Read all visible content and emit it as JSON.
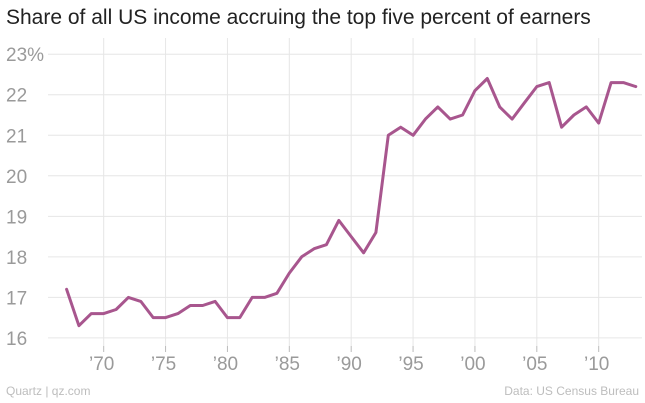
{
  "chart_data": {
    "type": "line",
    "title": "Share of all US income accruing the top five percent of earners",
    "xlabel": "",
    "ylabel": "",
    "xlim": [
      1965.5,
      2013.5
    ],
    "ylim": [
      15.8,
      23.4
    ],
    "x_ticks": [
      1970,
      1975,
      1980,
      1985,
      1990,
      1995,
      2000,
      2005,
      2010
    ],
    "x_tick_labels": [
      "’70",
      "’75",
      "’80",
      "’85",
      "’90",
      "’95",
      "’00",
      "’05",
      "’10"
    ],
    "y_ticks": [
      16,
      17,
      18,
      19,
      20,
      21,
      22,
      23
    ],
    "y_tick_labels": [
      "16",
      "17",
      "18",
      "19",
      "20",
      "21",
      "22",
      "23%"
    ],
    "grid": true,
    "line_color": "#a8568e",
    "series": [
      {
        "x": [
          1967,
          1968,
          1969,
          1970,
          1971,
          1972,
          1973,
          1974,
          1975,
          1976,
          1977,
          1978,
          1979,
          1980,
          1981,
          1982,
          1983,
          1984,
          1985,
          1986,
          1987,
          1988,
          1989,
          1990,
          1991,
          1992,
          1993,
          1994,
          1995,
          1996,
          1997,
          1998,
          1999,
          2000,
          2001,
          2002,
          2003,
          2004,
          2005,
          2006,
          2007,
          2008,
          2009,
          2010,
          2011,
          2012
        ],
        "y": [
          17.2,
          16.3,
          16.6,
          16.6,
          16.7,
          17.0,
          16.9,
          16.5,
          16.5,
          16.6,
          16.8,
          16.8,
          16.9,
          16.5,
          16.5,
          17.0,
          17.0,
          17.1,
          17.6,
          18.0,
          18.2,
          18.3,
          18.9,
          18.5,
          18.1,
          18.6,
          21.0,
          21.2,
          21.0,
          21.4,
          21.7,
          21.4,
          21.5,
          22.1,
          22.4,
          21.7,
          21.4,
          21.8,
          22.2,
          22.3,
          21.2,
          21.5,
          21.7,
          21.3,
          22.3,
          22.3
        ]
      }
    ],
    "final_point": {
      "x": 2013,
      "y": 22.2
    }
  },
  "footer": {
    "source_left": "Quartz | qz.com",
    "source_right": "Data: US Census Bureau"
  }
}
